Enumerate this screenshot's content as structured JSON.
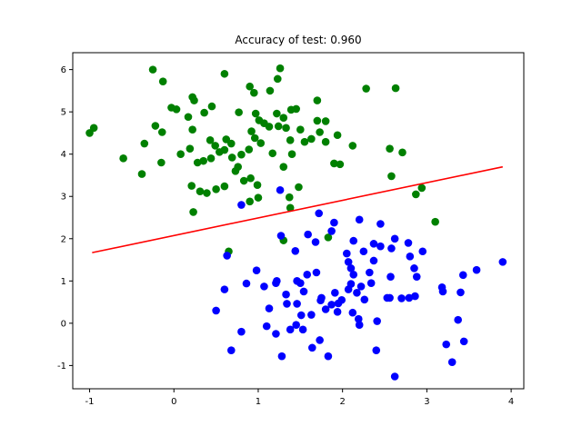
{
  "chart_data": {
    "type": "scatter",
    "title": "Accuracy of test: 0.960",
    "xlabel": "",
    "ylabel": "",
    "xlim": [
      -1.2,
      4.15
    ],
    "ylim": [
      -1.55,
      6.4
    ],
    "x_ticks": [
      -1,
      0,
      1,
      2,
      3,
      4
    ],
    "y_ticks": [
      -1,
      0,
      1,
      2,
      3,
      4,
      5,
      6
    ],
    "grid": false,
    "legend": "none",
    "series": [
      {
        "color": "#008000",
        "points": [
          [
            -0.25,
            6.0
          ],
          [
            -0.13,
            5.72
          ],
          [
            0.22,
            5.35
          ],
          [
            0.24,
            5.27
          ],
          [
            0.6,
            5.9
          ],
          [
            0.9,
            5.6
          ],
          [
            1.23,
            5.78
          ],
          [
            1.26,
            6.03
          ],
          [
            1.14,
            5.5
          ],
          [
            0.95,
            5.45
          ],
          [
            2.28,
            5.55
          ],
          [
            2.63,
            5.56
          ],
          [
            1.7,
            5.27
          ],
          [
            -0.03,
            5.1
          ],
          [
            0.03,
            5.06
          ],
          [
            0.45,
            5.13
          ],
          [
            0.36,
            4.98
          ],
          [
            0.17,
            4.88
          ],
          [
            0.77,
            4.99
          ],
          [
            0.97,
            4.96
          ],
          [
            1.01,
            4.8
          ],
          [
            1.07,
            4.73
          ],
          [
            1.22,
            4.96
          ],
          [
            1.3,
            4.86
          ],
          [
            1.39,
            5.05
          ],
          [
            1.45,
            5.07
          ],
          [
            1.24,
            4.66
          ],
          [
            1.33,
            4.62
          ],
          [
            1.5,
            4.58
          ],
          [
            1.7,
            4.79
          ],
          [
            1.8,
            4.78
          ],
          [
            1.94,
            4.45
          ],
          [
            -0.14,
            4.52
          ],
          [
            -0.22,
            4.67
          ],
          [
            0.22,
            4.58
          ],
          [
            0.43,
            4.33
          ],
          [
            0.49,
            4.2
          ],
          [
            0.62,
            4.35
          ],
          [
            0.68,
            4.25
          ],
          [
            0.92,
            4.54
          ],
          [
            0.96,
            4.38
          ],
          [
            1.03,
            4.26
          ],
          [
            1.13,
            4.65
          ],
          [
            1.38,
            4.33
          ],
          [
            1.63,
            4.36
          ],
          [
            1.73,
            4.52
          ],
          [
            1.8,
            4.29
          ],
          [
            2.12,
            4.2
          ],
          [
            2.56,
            4.13
          ],
          [
            2.71,
            4.04
          ],
          [
            -1.0,
            4.5
          ],
          [
            -0.95,
            4.62
          ],
          [
            -0.35,
            4.25
          ],
          [
            -0.6,
            3.9
          ],
          [
            0.08,
            4.0
          ],
          [
            0.19,
            4.13
          ],
          [
            0.28,
            3.8
          ],
          [
            0.35,
            3.84
          ],
          [
            0.44,
            3.9
          ],
          [
            0.54,
            4.05
          ],
          [
            0.6,
            4.1
          ],
          [
            0.69,
            3.92
          ],
          [
            0.8,
            3.99
          ],
          [
            0.89,
            4.11
          ],
          [
            1.17,
            4.02
          ],
          [
            1.3,
            3.7
          ],
          [
            1.4,
            4.0
          ],
          [
            1.55,
            4.29
          ],
          [
            1.9,
            3.78
          ],
          [
            1.97,
            3.76
          ],
          [
            2.58,
            3.48
          ],
          [
            -0.38,
            3.53
          ],
          [
            -0.15,
            3.8
          ],
          [
            0.21,
            3.25
          ],
          [
            0.31,
            3.12
          ],
          [
            0.39,
            3.08
          ],
          [
            0.5,
            3.17
          ],
          [
            0.6,
            3.24
          ],
          [
            0.73,
            3.6
          ],
          [
            0.76,
            3.7
          ],
          [
            0.83,
            3.37
          ],
          [
            0.91,
            3.43
          ],
          [
            0.99,
            3.27
          ],
          [
            1.0,
            2.97
          ],
          [
            1.37,
            2.98
          ],
          [
            1.48,
            3.22
          ],
          [
            1.38,
            2.73
          ],
          [
            0.23,
            2.63
          ],
          [
            0.9,
            2.88
          ],
          [
            2.87,
            3.05
          ],
          [
            2.94,
            3.2
          ],
          [
            3.1,
            2.4
          ],
          [
            1.3,
            1.96
          ],
          [
            1.83,
            2.03
          ],
          [
            0.65,
            1.7
          ]
        ]
      },
      {
        "color": "#0000ff",
        "points": [
          [
            1.26,
            3.15
          ],
          [
            0.8,
            2.8
          ],
          [
            1.72,
            2.6
          ],
          [
            1.9,
            2.38
          ],
          [
            2.2,
            2.45
          ],
          [
            2.45,
            2.35
          ],
          [
            1.59,
            2.1
          ],
          [
            1.87,
            2.18
          ],
          [
            1.27,
            2.07
          ],
          [
            2.13,
            1.95
          ],
          [
            2.37,
            1.88
          ],
          [
            2.58,
            1.77
          ],
          [
            2.62,
            2.0
          ],
          [
            1.68,
            1.92
          ],
          [
            1.44,
            1.71
          ],
          [
            0.63,
            1.6
          ],
          [
            2.05,
            1.65
          ],
          [
            2.25,
            1.7
          ],
          [
            2.45,
            1.82
          ],
          [
            2.78,
            1.9
          ],
          [
            2.95,
            1.7
          ],
          [
            2.8,
            1.58
          ],
          [
            2.07,
            1.45
          ],
          [
            2.37,
            1.48
          ],
          [
            2.1,
            1.3
          ],
          [
            0.98,
            1.25
          ],
          [
            1.22,
            1.0
          ],
          [
            1.46,
            1.0
          ],
          [
            1.58,
            1.15
          ],
          [
            1.69,
            1.2
          ],
          [
            2.13,
            1.15
          ],
          [
            2.32,
            1.2
          ],
          [
            2.85,
            1.3
          ],
          [
            2.57,
            1.1
          ],
          [
            2.88,
            1.1
          ],
          [
            3.43,
            1.14
          ],
          [
            3.59,
            1.26
          ],
          [
            3.9,
            1.45
          ],
          [
            0.6,
            0.8
          ],
          [
            0.86,
            0.94
          ],
          [
            1.07,
            0.87
          ],
          [
            1.21,
            0.95
          ],
          [
            1.33,
            0.68
          ],
          [
            1.5,
            0.95
          ],
          [
            1.54,
            0.75
          ],
          [
            1.74,
            0.54
          ],
          [
            1.75,
            0.6
          ],
          [
            1.91,
            0.72
          ],
          [
            2.07,
            0.8
          ],
          [
            2.1,
            0.93
          ],
          [
            2.17,
            0.72
          ],
          [
            2.22,
            0.87
          ],
          [
            2.26,
            0.56
          ],
          [
            2.34,
            0.95
          ],
          [
            2.53,
            0.6
          ],
          [
            2.56,
            0.6
          ],
          [
            2.7,
            0.59
          ],
          [
            2.79,
            0.6
          ],
          [
            2.86,
            0.64
          ],
          [
            3.18,
            0.85
          ],
          [
            3.4,
            0.73
          ],
          [
            3.19,
            0.75
          ],
          [
            1.34,
            0.46
          ],
          [
            1.46,
            0.46
          ],
          [
            1.87,
            0.44
          ],
          [
            1.95,
            0.47
          ],
          [
            1.99,
            0.55
          ],
          [
            1.8,
            0.33
          ],
          [
            1.94,
            0.27
          ],
          [
            0.5,
            0.3
          ],
          [
            1.13,
            0.35
          ],
          [
            1.51,
            0.19
          ],
          [
            1.45,
            -0.04
          ],
          [
            1.63,
            0.2
          ],
          [
            2.12,
            0.25
          ],
          [
            2.19,
            0.1
          ],
          [
            2.2,
            -0.04
          ],
          [
            2.41,
            0.05
          ],
          [
            3.37,
            0.08
          ],
          [
            3.44,
            -0.43
          ],
          [
            1.1,
            -0.07
          ],
          [
            1.21,
            -0.25
          ],
          [
            1.38,
            -0.15
          ],
          [
            0.8,
            -0.2
          ],
          [
            1.53,
            -0.15
          ],
          [
            1.73,
            -0.4
          ],
          [
            2.4,
            -0.64
          ],
          [
            3.23,
            -0.5
          ],
          [
            3.3,
            -0.92
          ],
          [
            0.68,
            -0.64
          ],
          [
            1.64,
            -0.58
          ],
          [
            1.83,
            -0.78
          ],
          [
            1.28,
            -0.78
          ],
          [
            2.62,
            -1.26
          ]
        ]
      },
      {
        "type": "line",
        "color": "#ff0000",
        "points": [
          [
            -0.97,
            1.67
          ],
          [
            3.9,
            3.7
          ]
        ]
      }
    ]
  }
}
